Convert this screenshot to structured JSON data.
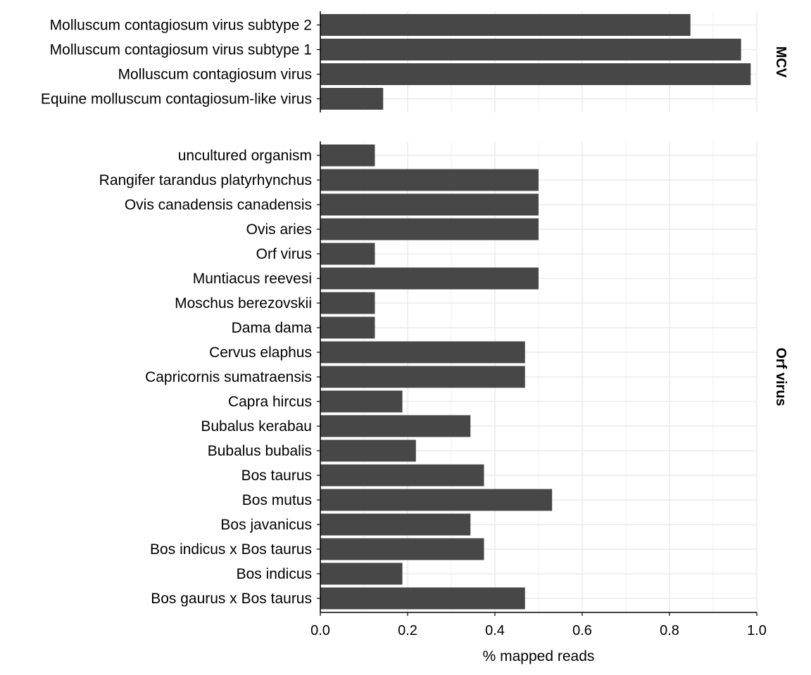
{
  "chart_data": {
    "type": "bar",
    "orientation": "horizontal",
    "xlabel": "% mapped reads",
    "ylabel": "",
    "xlim": [
      0,
      1.0
    ],
    "xticks": [
      0.0,
      0.2,
      0.4,
      0.6,
      0.8,
      1.0
    ],
    "xtick_labels": [
      "0.0",
      "0.2",
      "0.4",
      "0.6",
      "0.8",
      "1.0"
    ],
    "grid": true,
    "bar_color": "#474747",
    "facets": [
      {
        "label": "MCV",
        "categories": [
          "Molluscum contagiosum virus subtype 2",
          "Molluscum contagiosum virus subtype 1",
          "Molluscum contagiosum virus",
          "Equine molluscum contagiosum-like virus"
        ],
        "values": [
          0.848,
          0.964,
          0.986,
          0.144
        ]
      },
      {
        "label": "Orf virus",
        "categories": [
          "uncultured organism",
          "Rangifer tarandus platyrhynchus",
          "Ovis canadensis canadensis",
          "Ovis aries",
          "Orf virus",
          "Muntiacus reevesi",
          "Moschus berezovskii",
          "Dama dama",
          "Cervus elaphus",
          "Capricornis sumatraensis",
          "Capra hircus",
          "Bubalus kerabau",
          "Bubalus bubalis",
          "Bos taurus",
          "Bos mutus",
          "Bos javanicus",
          "Bos indicus x Bos taurus",
          "Bos indicus",
          "Bos gaurus x Bos taurus"
        ],
        "values": [
          0.125,
          0.5,
          0.5,
          0.5,
          0.125,
          0.5,
          0.125,
          0.125,
          0.469,
          0.469,
          0.188,
          0.344,
          0.219,
          0.375,
          0.531,
          0.344,
          0.375,
          0.188,
          0.469
        ]
      }
    ]
  }
}
